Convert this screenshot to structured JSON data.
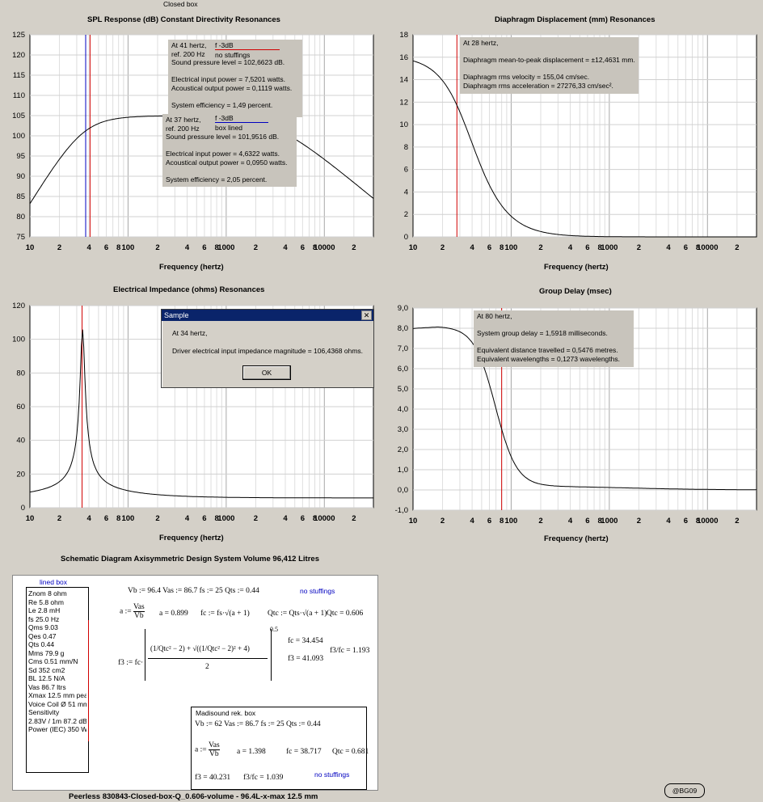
{
  "window_title": "Closed box",
  "colors": {
    "background": "#d4d0c8",
    "plot": "#ffffff",
    "marker_red": "#d00000",
    "marker_blue": "#0000c0",
    "info_box": "#c8c4bc",
    "dialog_title": "#0a246a"
  },
  "charts": {
    "spl": {
      "title": "SPL Response (dB)    Constant Directivity    Resonances",
      "xlabel": "Frequency (hertz)",
      "yticks": [
        "125",
        "120",
        "115",
        "110",
        "105",
        "100",
        "95",
        "90",
        "85",
        "80",
        "75"
      ],
      "xticks": [
        "10",
        "2",
        "4",
        "6",
        "8",
        "100",
        "2",
        "4",
        "6",
        "8",
        "1000",
        "2",
        "4",
        "6",
        "8",
        "10000",
        "2"
      ],
      "info1": [
        "At 41 hertz,",
        "ref. 200 Hz",
        "Sound pressure level = 102,6623 dB.",
        "",
        "Electrical input power = 7,5201 watts.",
        "Acoustical output power = 0,1119 watts.",
        "",
        "System efficiency = 1,49 percent."
      ],
      "legend1": {
        "line": "f -3dB",
        "label": "no stuffings"
      },
      "info2": [
        "At 37 hertz,",
        "ref. 200 Hz",
        "Sound pressure level = 101,9516 dB.",
        "",
        "Electrical input power = 4,6322 watts.",
        "Acoustical output power = 0,0950 watts.",
        "",
        "System efficiency = 2,05 percent."
      ],
      "legend2": {
        "line": "f -3dB",
        "label": "box lined"
      }
    },
    "displacement": {
      "title": "Diaphragm Displacement (mm)    Resonances",
      "xlabel": "Frequency (hertz)",
      "yticks": [
        "18",
        "16",
        "14",
        "12",
        "10",
        "8",
        "6",
        "4",
        "2",
        "0"
      ],
      "xticks": [
        "10",
        "2",
        "4",
        "6",
        "8",
        "100",
        "2",
        "4",
        "6",
        "8",
        "1000",
        "2",
        "4",
        "6",
        "8",
        "10000",
        "2"
      ],
      "info": [
        "At 28 hertz,",
        "",
        "Diaphragm mean-to-peak displacement = ±12,4631 mm.",
        "",
        "Diaphragm rms velocity = 155,04 cm/sec.",
        "Diaphragm rms acceleration = 27276,33 cm/sec²."
      ]
    },
    "impedance": {
      "title": "Electrical Impedance (ohms)    Resonances",
      "xlabel": "Frequency (hertz)",
      "yticks": [
        "120",
        "100",
        "80",
        "60",
        "40",
        "20",
        "0"
      ],
      "xticks": [
        "10",
        "2",
        "4",
        "6",
        "8",
        "100",
        "2",
        "4",
        "6",
        "8",
        "1000",
        "2",
        "4",
        "6",
        "8",
        "10000",
        "2"
      ]
    },
    "group_delay": {
      "title": "Group Delay (msec)",
      "xlabel": "Frequency (hertz)",
      "yticks": [
        "9,0",
        "8,0",
        "7,0",
        "6,0",
        "5,0",
        "4,0",
        "3,0",
        "2,0",
        "1,0",
        "0,0",
        "-1,0"
      ],
      "xticks": [
        "10",
        "2",
        "4",
        "6",
        "8",
        "100",
        "2",
        "4",
        "6",
        "8",
        "1000",
        "2",
        "4",
        "6",
        "8",
        "10000",
        "2"
      ],
      "info": [
        "At 80 hertz,",
        "",
        "System group delay = 1,5918 milliseconds.",
        "",
        "Equivalent distance travelled = 0,5476 metres.",
        "Equivalent wavelengths = 0,1273 wavelengths."
      ]
    }
  },
  "dialog": {
    "title": "Sample",
    "line1": "At 34 hertz,",
    "line2": "Driver electrical input impedance magnitude = 106,4368 ohms.",
    "ok": "OK",
    "close": "✕"
  },
  "schematic": {
    "title": "Schematic Diagram    Axisymmetric Design    System Volume 96,412 Litres",
    "lined_box": "lined box",
    "specs": [
      "Znom 8 ohm",
      "Re 5.8 ohm",
      "Le 2.8 mH",
      "fs 25.0 Hz",
      "Qms 9.03",
      "Qes 0.47",
      "Qts 0.44",
      "Mms 79.9 g",
      "Cms 0.51 mm/N",
      "Sd 352 cm2",
      "BL 12.5 N/A",
      "Vas 86.7 ltrs",
      "Xmax 12.5 mm peak",
      "Voice Coil Ø 51 mm",
      "Sensitivity",
      "2.83V / 1m 87.2 dB",
      "Power (IEC) 350 W"
    ],
    "eq_top": "Vb := 96.4    Vas := 86.7    fs := 25    Qts := 0.44",
    "no_stuff": "no stuffings",
    "eq_a_lhs": "a :=",
    "eq_vas": "Vas",
    "eq_vb": "Vb",
    "eq_a_val": "a = 0.899",
    "eq_fc": "fc := fs·√(a + 1)",
    "eq_qtc": "Qtc := Qts·√(a + 1)",
    "eq_qtc_val": "Qtc = 0.606",
    "eq_f3_lhs": "f3 := fc·",
    "eq_f3_body": "(1/Qtc² − 2) + √((1/Qtc² − 2)² + 4)",
    "eq_f3_den": "2",
    "eq_exp": "0.5",
    "fc_val": "fc = 34.454",
    "f3_val": "f3 = 41.093",
    "ratio_val": "f3/fc = 1.193",
    "madisound": {
      "title": "Madisound rek. box",
      "eq_top": "Vb := 62    Vas := 86.7    fs := 25    Qts := 0.44",
      "a_lhs": "a :=",
      "vas": "Vas",
      "vb": "Vb",
      "a_val": "a = 1.398",
      "fc_val": "fc = 38.717",
      "qtc_val": "Qtc = 0.681",
      "f3_val": "f3 = 40.231",
      "ratio_val": "f3/fc = 1.039",
      "no_stuff": "no stuffings"
    }
  },
  "footer": "Peerless 830843-Closed-box-Q_0.606-volume - 96.4L-x-max 12.5 mm",
  "badge": "@BG09"
}
